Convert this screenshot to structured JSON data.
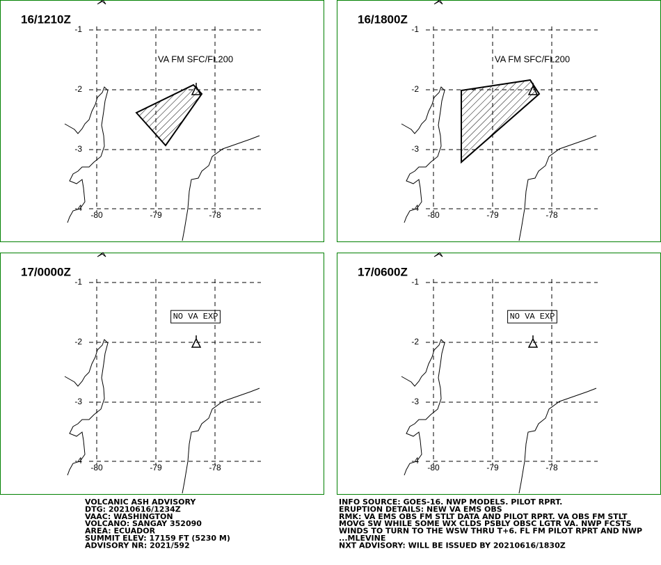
{
  "panels": [
    {
      "time": "16/1210Z",
      "annotation": "VA FM SFC/FL200"
    },
    {
      "time": "16/1800Z",
      "annotation": "VA FM SFC/FL200"
    },
    {
      "time": "17/0000Z",
      "annotation": "NO VA EXP"
    },
    {
      "time": "17/0600Z",
      "annotation": "NO VA EXP"
    }
  ],
  "latitude_labels": [
    -1,
    -2,
    -3,
    -4
  ],
  "longitude_labels": [
    -80,
    -79,
    -78
  ],
  "advisory": {
    "left": [
      "VOLCANIC ASH ADVISORY",
      "DTG: 20210616/1234Z",
      "VAAC: WASHINGTON",
      "VOLCANO: SANGAY 352090",
      "AREA: ECUADOR",
      "SUMMIT ELEV: 17159 FT (5230 M)",
      "ADVISORY NR: 2021/592"
    ],
    "right": [
      "INFO SOURCE: GOES-16. NWP MODELS. PILOT RPRT.",
      "ERUPTION DETAILS: NEW VA EMS OBS",
      "RMK: VA EMS OBS FM STLT DATA AND PILOT RPRT. VA OBS FM STLT",
      "MOVG SW WHILE SOME WX CLDS PSBLY OBSC LGTR VA. NWP FCSTS",
      "WINDS TO TURN TO THE WSW THRU T+6. FL FM PILOT RPRT AND NWP",
      "...MLEVINE",
      "NXT ADVISORY: WILL BE ISSUED BY 20210616/1830Z"
    ]
  }
}
